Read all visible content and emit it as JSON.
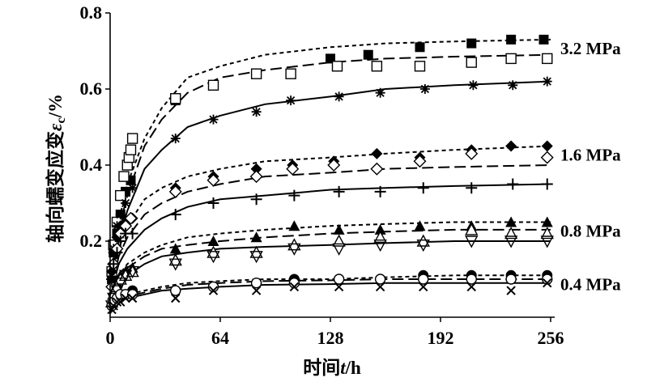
{
  "chart_data": {
    "type": "scatter",
    "xlabel": "时间",
    "xlabel_var": "t",
    "xlabel_unit": "/h",
    "ylabel": "轴向蠕变应变",
    "ylabel_var": "ε",
    "ylabel_sub": "c",
    "ylabel_unit": "/%",
    "xlim": [
      0,
      256
    ],
    "ylim": [
      0,
      0.8
    ],
    "x_ticks": [
      0,
      64,
      128,
      192,
      256
    ],
    "x_tick_labels": [
      "0",
      "64",
      "128",
      "192",
      "256"
    ],
    "y_ticks": [
      0.2,
      0.4,
      0.6,
      0.8
    ],
    "y_tick_labels": [
      "0.2",
      "0.4",
      "0.6",
      "0.8"
    ],
    "groups": [
      {
        "label": "3.2 MPa",
        "series": [
          {
            "marker": "filled-square",
            "line": "short-dash",
            "fit": [
              0.03,
              0.17,
              0.25,
              0.35,
              0.47,
              0.55,
              0.63,
              0.66,
              0.69,
              0.71,
              0.72,
              0.725,
              0.73
            ],
            "x": [
              1,
              2,
              4,
              6,
              9,
              12,
              38,
              60,
              85,
              128,
              150,
              180,
              210,
              233,
              252
            ],
            "y": [
              0.1,
              0.17,
              0.22,
              0.27,
              0.33,
              0.36,
              0.57,
              0.61,
              0.64,
              0.68,
              0.69,
              0.71,
              0.72,
              0.73,
              0.73
            ]
          },
          {
            "marker": "open-square",
            "line": "long-dash",
            "fit": [
              0.02,
              0.15,
              0.23,
              0.32,
              0.45,
              0.52,
              0.59,
              0.63,
              0.65,
              0.67,
              0.68,
              0.685,
              0.69
            ],
            "x": [
              1,
              2,
              4,
              6,
              8,
              10,
              11,
              12,
              13,
              38,
              60,
              85,
              105,
              132,
              155,
              180,
              210,
              233,
              254
            ],
            "y": [
              0.12,
              0.19,
              0.25,
              0.32,
              0.37,
              0.4,
              0.42,
              0.44,
              0.47,
              0.575,
              0.61,
              0.64,
              0.64,
              0.66,
              0.66,
              0.66,
              0.67,
              0.68,
              0.68
            ]
          },
          {
            "marker": "asterisk",
            "line": "solid",
            "fit": [
              0.02,
              0.13,
              0.2,
              0.28,
              0.39,
              0.44,
              0.5,
              0.53,
              0.56,
              0.58,
              0.6,
              0.61,
              0.62
            ],
            "x": [
              1,
              2,
              4,
              6,
              9,
              13,
              38,
              60,
              85,
              105,
              133,
              157,
              183,
              211,
              234,
              254
            ],
            "y": [
              0.1,
              0.18,
              0.24,
              0.27,
              0.3,
              0.34,
              0.47,
              0.52,
              0.54,
              0.57,
              0.58,
              0.59,
              0.6,
              0.61,
              0.61,
              0.62
            ]
          }
        ]
      },
      {
        "label": "1.6 MPa",
        "series": [
          {
            "marker": "filled-diamond",
            "line": "short-dash",
            "fit": [
              0.02,
              0.12,
              0.18,
              0.24,
              0.31,
              0.34,
              0.37,
              0.39,
              0.41,
              0.42,
              0.43,
              0.44,
              0.45
            ],
            "x": [
              1,
              2,
              4,
              6,
              9,
              13,
              38,
              60,
              85,
              106,
              130,
              155,
              180,
              210,
              233,
              254
            ],
            "y": [
              0.12,
              0.17,
              0.21,
              0.24,
              0.25,
              0.26,
              0.34,
              0.37,
              0.39,
              0.4,
              0.41,
              0.43,
              0.42,
              0.44,
              0.45,
              0.45
            ]
          },
          {
            "marker": "open-diamond",
            "line": "long-dash",
            "fit": [
              0.02,
              0.1,
              0.16,
              0.21,
              0.27,
              0.3,
              0.33,
              0.35,
              0.37,
              0.38,
              0.39,
              0.395,
              0.4
            ],
            "x": [
              1,
              2,
              4,
              6,
              9,
              12,
              38,
              60,
              85,
              106,
              130,
              155,
              180,
              210,
              254
            ],
            "y": [
              0.08,
              0.14,
              0.18,
              0.22,
              0.24,
              0.26,
              0.33,
              0.36,
              0.37,
              0.39,
              0.4,
              0.39,
              0.41,
              0.43,
              0.42
            ]
          },
          {
            "marker": "plus",
            "line": "solid",
            "fit": [
              0.02,
              0.09,
              0.14,
              0.18,
              0.23,
              0.26,
              0.29,
              0.31,
              0.32,
              0.335,
              0.34,
              0.345,
              0.35
            ],
            "x": [
              1,
              2,
              4,
              6,
              9,
              13,
              38,
              60,
              85,
              107,
              133,
              157,
              182,
              210,
              234,
              254
            ],
            "y": [
              0.1,
              0.14,
              0.17,
              0.2,
              0.22,
              0.22,
              0.27,
              0.3,
              0.31,
              0.32,
              0.33,
              0.33,
              0.34,
              0.34,
              0.35,
              0.35
            ]
          }
        ]
      },
      {
        "label": "0.8 MPa",
        "series": [
          {
            "marker": "filled-triangle",
            "line": "short-dash",
            "fit": [
              0.01,
              0.07,
              0.11,
              0.14,
              0.17,
              0.19,
              0.21,
              0.22,
              0.23,
              0.24,
              0.245,
              0.25,
              0.25
            ],
            "x": [
              1,
              2,
              4,
              6,
              9,
              13,
              38,
              60,
              85,
              107,
              133,
              157,
              180,
              210,
              233,
              254
            ],
            "y": [
              0.04,
              0.07,
              0.09,
              0.11,
              0.12,
              0.13,
              0.18,
              0.2,
              0.21,
              0.24,
              0.23,
              0.23,
              0.24,
              0.24,
              0.25,
              0.25
            ]
          },
          {
            "marker": "open-triangle",
            "line": "long-dash",
            "fit": [
              0.01,
              0.06,
              0.1,
              0.13,
              0.16,
              0.18,
              0.19,
              0.2,
              0.21,
              0.22,
              0.225,
              0.23,
              0.23
            ],
            "x": [
              1,
              2,
              4,
              6,
              9,
              13,
              38,
              60,
              85,
              107,
              133,
              157,
              182,
              210,
              233,
              254
            ],
            "y": [
              0.04,
              0.06,
              0.08,
              0.1,
              0.11,
              0.12,
              0.15,
              0.17,
              0.17,
              0.19,
              0.2,
              0.21,
              0.2,
              0.23,
              0.22,
              0.22
            ]
          },
          {
            "marker": "open-down-triangle",
            "line": "solid",
            "fit": [
              0.01,
              0.05,
              0.09,
              0.11,
              0.14,
              0.16,
              0.17,
              0.18,
              0.185,
              0.19,
              0.195,
              0.2,
              0.2
            ],
            "x": [
              1,
              2,
              4,
              6,
              9,
              13,
              38,
              60,
              85,
              107,
              133,
              157,
              182,
              210,
              233,
              254
            ],
            "y": [
              0.03,
              0.05,
              0.07,
              0.09,
              0.11,
              0.12,
              0.14,
              0.16,
              0.16,
              0.18,
              0.18,
              0.19,
              0.19,
              0.2,
              0.2,
              0.2
            ]
          }
        ]
      },
      {
        "label": "0.4 MPa",
        "series": [
          {
            "marker": "filled-circle",
            "line": "short-dash",
            "fit": [
              0.01,
              0.03,
              0.05,
              0.06,
              0.07,
              0.08,
              0.09,
              0.095,
              0.1,
              0.1,
              0.105,
              0.11,
              0.11
            ],
            "x": [
              1,
              2,
              4,
              6,
              9,
              13,
              38,
              60,
              85,
              107,
              133,
              157,
              182,
              210,
              233,
              254
            ],
            "y": [
              0.03,
              0.04,
              0.05,
              0.06,
              0.06,
              0.07,
              0.07,
              0.08,
              0.09,
              0.1,
              0.1,
              0.1,
              0.11,
              0.11,
              0.11,
              0.11
            ]
          },
          {
            "marker": "open-circle",
            "line": "long-dash",
            "fit": [
              0.01,
              0.03,
              0.045,
              0.055,
              0.065,
              0.075,
              0.085,
              0.09,
              0.095,
              0.097,
              0.1,
              0.1,
              0.1
            ],
            "x": [
              1,
              2,
              4,
              6,
              9,
              13,
              38,
              60,
              85,
              107,
              133,
              157,
              182,
              210,
              233,
              254
            ],
            "y": [
              0.03,
              0.04,
              0.05,
              0.06,
              0.06,
              0.06,
              0.07,
              0.08,
              0.09,
              0.09,
              0.1,
              0.1,
              0.1,
              0.1,
              0.1,
              0.1
            ]
          },
          {
            "marker": "x-cross",
            "line": "solid",
            "fit": [
              0.01,
              0.025,
              0.04,
              0.05,
              0.06,
              0.07,
              0.075,
              0.08,
              0.085,
              0.087,
              0.09,
              0.09,
              0.09
            ],
            "x": [
              1,
              2,
              4,
              6,
              9,
              13,
              38,
              60,
              85,
              107,
              133,
              157,
              182,
              210,
              233,
              254
            ],
            "y": [
              0.02,
              0.03,
              0.04,
              0.04,
              0.05,
              0.05,
              0.05,
              0.07,
              0.07,
              0.08,
              0.08,
              0.08,
              0.08,
              0.08,
              0.07,
              0.09
            ]
          }
        ]
      }
    ],
    "fit_x": [
      0,
      2,
      5,
      10,
      20,
      30,
      45,
      64,
      90,
      128,
      160,
      200,
      256
    ]
  }
}
